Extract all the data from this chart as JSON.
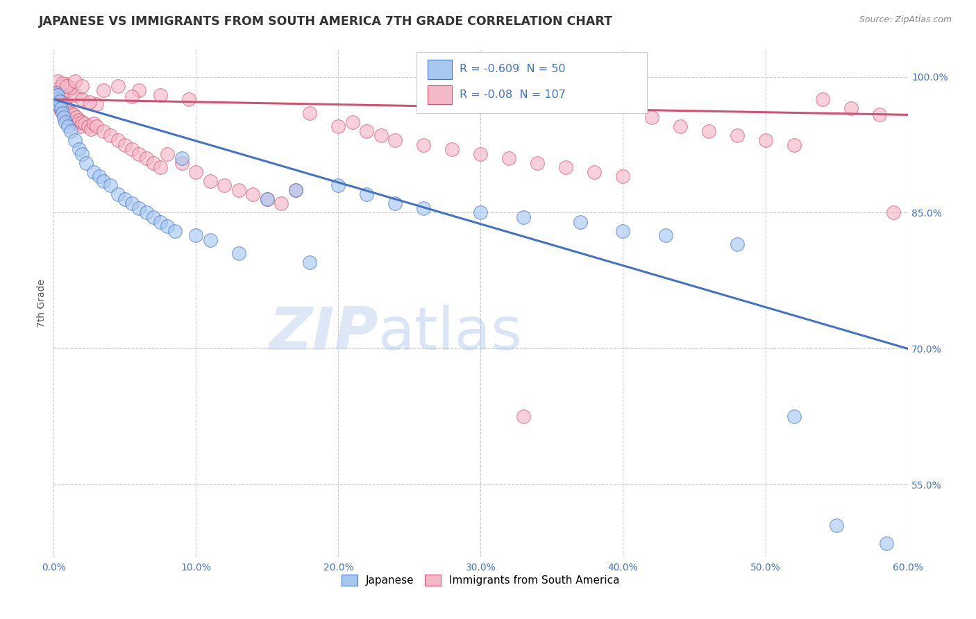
{
  "title": "JAPANESE VS IMMIGRANTS FROM SOUTH AMERICA 7TH GRADE CORRELATION CHART",
  "source": "Source: ZipAtlas.com",
  "ylabel": "7th Grade",
  "xlim": [
    0.0,
    60.0
  ],
  "ylim": [
    47.0,
    103.0
  ],
  "ytick_values": [
    55.0,
    70.0,
    85.0,
    100.0
  ],
  "xtick_labels": [
    "0.0%",
    "10.0%",
    "20.0%",
    "30.0%",
    "40.0%",
    "50.0%",
    "60.0%"
  ],
  "xtick_values": [
    0.0,
    10.0,
    20.0,
    30.0,
    40.0,
    50.0,
    60.0
  ],
  "right_ytick_values": [
    100.0,
    85.0,
    70.0,
    55.0
  ],
  "right_ytick_labels": [
    "100.0%",
    "85.0%",
    "70.0%",
    "55.0%"
  ],
  "blue_R": -0.609,
  "blue_N": 50,
  "pink_R": -0.08,
  "pink_N": 107,
  "blue_line_x": [
    0.0,
    60.0
  ],
  "blue_line_y": [
    97.5,
    70.0
  ],
  "pink_line_x": [
    0.0,
    60.0
  ],
  "pink_line_y": [
    97.5,
    95.8
  ],
  "blue_color": "#a8c8f0",
  "blue_edge_color": "#4472c4",
  "pink_color": "#f4b8c8",
  "pink_edge_color": "#d45070",
  "blue_line_color": "#4472c4",
  "pink_line_color": "#d45070",
  "legend_label_blue": "Japanese",
  "legend_label_pink": "Immigrants from South America",
  "watermark_zip": "ZIP",
  "watermark_atlas": "atlas",
  "blue_dots": [
    [
      0.1,
      97.8
    ],
    [
      0.15,
      97.2
    ],
    [
      0.2,
      98.2
    ],
    [
      0.25,
      97.5
    ],
    [
      0.3,
      98.0
    ],
    [
      0.35,
      96.8
    ],
    [
      0.4,
      97.3
    ],
    [
      0.5,
      96.5
    ],
    [
      0.6,
      96.0
    ],
    [
      0.7,
      95.5
    ],
    [
      0.8,
      95.0
    ],
    [
      1.0,
      94.5
    ],
    [
      1.2,
      94.0
    ],
    [
      1.5,
      93.0
    ],
    [
      1.8,
      92.0
    ],
    [
      2.0,
      91.5
    ],
    [
      2.3,
      90.5
    ],
    [
      2.8,
      89.5
    ],
    [
      3.2,
      89.0
    ],
    [
      3.5,
      88.5
    ],
    [
      4.0,
      88.0
    ],
    [
      4.5,
      87.0
    ],
    [
      5.0,
      86.5
    ],
    [
      5.5,
      86.0
    ],
    [
      6.0,
      85.5
    ],
    [
      6.5,
      85.0
    ],
    [
      7.0,
      84.5
    ],
    [
      7.5,
      84.0
    ],
    [
      8.0,
      83.5
    ],
    [
      8.5,
      83.0
    ],
    [
      9.0,
      91.0
    ],
    [
      10.0,
      82.5
    ],
    [
      11.0,
      82.0
    ],
    [
      13.0,
      80.5
    ],
    [
      15.0,
      86.5
    ],
    [
      17.0,
      87.5
    ],
    [
      18.0,
      79.5
    ],
    [
      20.0,
      88.0
    ],
    [
      22.0,
      87.0
    ],
    [
      24.0,
      86.0
    ],
    [
      26.0,
      85.5
    ],
    [
      30.0,
      85.0
    ],
    [
      33.0,
      84.5
    ],
    [
      37.0,
      84.0
    ],
    [
      40.0,
      83.0
    ],
    [
      43.0,
      82.5
    ],
    [
      48.0,
      81.5
    ],
    [
      52.0,
      62.5
    ],
    [
      55.0,
      50.5
    ],
    [
      58.5,
      48.5
    ]
  ],
  "pink_dots": [
    [
      0.05,
      98.5
    ],
    [
      0.1,
      98.0
    ],
    [
      0.12,
      97.8
    ],
    [
      0.15,
      98.2
    ],
    [
      0.18,
      97.5
    ],
    [
      0.2,
      98.0
    ],
    [
      0.22,
      97.3
    ],
    [
      0.25,
      97.8
    ],
    [
      0.28,
      97.0
    ],
    [
      0.3,
      97.5
    ],
    [
      0.32,
      97.2
    ],
    [
      0.35,
      96.8
    ],
    [
      0.38,
      97.0
    ],
    [
      0.4,
      96.5
    ],
    [
      0.42,
      97.2
    ],
    [
      0.45,
      96.8
    ],
    [
      0.48,
      97.5
    ],
    [
      0.5,
      96.3
    ],
    [
      0.55,
      97.0
    ],
    [
      0.6,
      96.8
    ],
    [
      0.65,
      96.5
    ],
    [
      0.7,
      97.0
    ],
    [
      0.75,
      96.2
    ],
    [
      0.8,
      96.8
    ],
    [
      0.85,
      96.0
    ],
    [
      0.9,
      96.5
    ],
    [
      0.95,
      95.8
    ],
    [
      1.0,
      96.3
    ],
    [
      1.1,
      95.5
    ],
    [
      1.2,
      96.0
    ],
    [
      1.3,
      95.3
    ],
    [
      1.4,
      95.8
    ],
    [
      1.5,
      95.0
    ],
    [
      1.6,
      95.5
    ],
    [
      1.7,
      94.8
    ],
    [
      1.8,
      95.2
    ],
    [
      1.9,
      94.5
    ],
    [
      2.0,
      95.0
    ],
    [
      2.2,
      94.8
    ],
    [
      2.4,
      94.5
    ],
    [
      2.6,
      94.2
    ],
    [
      2.8,
      94.8
    ],
    [
      3.0,
      94.5
    ],
    [
      3.5,
      94.0
    ],
    [
      4.0,
      93.5
    ],
    [
      4.5,
      93.0
    ],
    [
      5.0,
      92.5
    ],
    [
      5.5,
      92.0
    ],
    [
      6.0,
      91.5
    ],
    [
      6.5,
      91.0
    ],
    [
      7.0,
      90.5
    ],
    [
      7.5,
      90.0
    ],
    [
      8.0,
      91.5
    ],
    [
      9.0,
      90.5
    ],
    [
      10.0,
      89.5
    ],
    [
      11.0,
      88.5
    ],
    [
      12.0,
      88.0
    ],
    [
      13.0,
      87.5
    ],
    [
      14.0,
      87.0
    ],
    [
      15.0,
      86.5
    ],
    [
      16.0,
      86.0
    ],
    [
      17.0,
      87.5
    ],
    [
      18.0,
      96.0
    ],
    [
      20.0,
      94.5
    ],
    [
      21.0,
      95.0
    ],
    [
      22.0,
      94.0
    ],
    [
      23.0,
      93.5
    ],
    [
      24.0,
      93.0
    ],
    [
      26.0,
      92.5
    ],
    [
      28.0,
      92.0
    ],
    [
      30.0,
      91.5
    ],
    [
      32.0,
      91.0
    ],
    [
      34.0,
      90.5
    ],
    [
      36.0,
      90.0
    ],
    [
      38.0,
      89.5
    ],
    [
      40.0,
      89.0
    ],
    [
      42.0,
      95.5
    ],
    [
      44.0,
      94.5
    ],
    [
      46.0,
      94.0
    ],
    [
      48.0,
      93.5
    ],
    [
      50.0,
      93.0
    ],
    [
      52.0,
      92.5
    ],
    [
      54.0,
      97.5
    ],
    [
      56.0,
      96.5
    ],
    [
      58.0,
      95.8
    ],
    [
      1.0,
      98.5
    ],
    [
      1.5,
      98.0
    ],
    [
      2.0,
      97.5
    ],
    [
      3.0,
      97.0
    ],
    [
      0.5,
      99.0
    ],
    [
      0.8,
      99.2
    ],
    [
      1.2,
      98.8
    ],
    [
      2.5,
      97.2
    ],
    [
      4.5,
      99.0
    ],
    [
      6.0,
      98.5
    ],
    [
      7.5,
      98.0
    ],
    [
      9.5,
      97.5
    ],
    [
      0.3,
      99.5
    ],
    [
      0.6,
      99.3
    ],
    [
      0.9,
      99.0
    ],
    [
      1.5,
      99.5
    ],
    [
      2.0,
      99.0
    ],
    [
      3.5,
      98.5
    ],
    [
      5.5,
      97.8
    ],
    [
      33.0,
      62.5
    ],
    [
      59.0,
      85.0
    ]
  ]
}
